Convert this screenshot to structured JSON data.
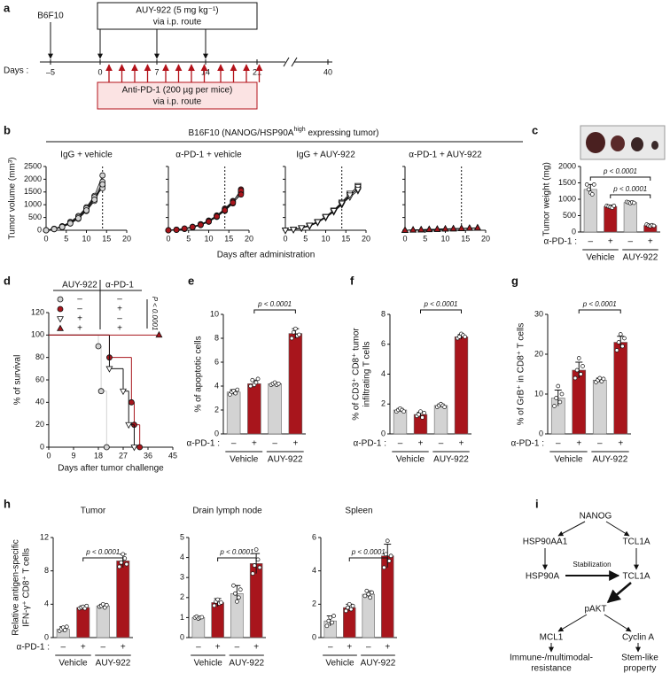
{
  "panel_letters": [
    "a",
    "b",
    "c",
    "d",
    "e",
    "f",
    "g",
    "h",
    "i"
  ],
  "timeline": {
    "start_label": "B6F10",
    "drug_box": [
      "AUY-922 (5 mg kg⁻¹)",
      "via i.p. route"
    ],
    "antibody_box": [
      "Anti-PD-1 (200 µg per mice)",
      "via i.p. route"
    ],
    "days_label": "Days :",
    "days": [
      "–5",
      "0",
      "7",
      "14",
      "21",
      "40"
    ]
  },
  "panel_b": {
    "title_parts": [
      "B16F10 (NANOG/HSP90A",
      "high",
      " expressing tumor)"
    ],
    "x_label": "Days after administration",
    "y_label": "Tumor volume (mm³)"
  },
  "chart_data": [
    {
      "type": "line",
      "title": "IgG + vehicle",
      "marker": "circle",
      "color": "#d3d3d3",
      "vline": 14,
      "x": [
        0,
        2,
        4,
        6,
        8,
        10,
        12,
        14,
        16,
        18
      ],
      "xlim": [
        0,
        20
      ],
      "xticks": [
        0,
        5,
        10,
        15,
        20
      ],
      "ylim": [
        0,
        2500
      ],
      "yticks": [
        0,
        500,
        1000,
        1500,
        2000,
        2500
      ],
      "ytick_labels": true,
      "series": [
        {
          "values": [
            0,
            60,
            160,
            330,
            560,
            900,
            1350,
            2150,
            null,
            null
          ]
        },
        {
          "values": [
            0,
            50,
            140,
            290,
            500,
            820,
            1250,
            1900,
            null,
            null
          ]
        },
        {
          "values": [
            0,
            40,
            120,
            260,
            450,
            750,
            1150,
            1750,
            null,
            null
          ]
        },
        {
          "values": [
            0,
            55,
            150,
            310,
            520,
            860,
            1300,
            1650,
            null,
            null
          ]
        },
        {
          "values": [
            0,
            45,
            130,
            270,
            470,
            780,
            1200,
            1800,
            null,
            null
          ]
        }
      ]
    },
    {
      "type": "line",
      "title": "α-PD-1 + vehicle",
      "marker": "circle",
      "color": "#a8151c",
      "vline": 14,
      "x": [
        0,
        2,
        4,
        6,
        8,
        10,
        12,
        14,
        16,
        18
      ],
      "xlim": [
        0,
        20
      ],
      "xticks": [
        0,
        5,
        10,
        15,
        20
      ],
      "ylim": [
        0,
        2500
      ],
      "yticks": [
        0,
        500,
        1000,
        1500,
        2000,
        2500
      ],
      "ytick_labels": false,
      "series": [
        {
          "values": [
            0,
            20,
            60,
            120,
            220,
            360,
            550,
            800,
            1100,
            1600
          ]
        },
        {
          "values": [
            0,
            25,
            70,
            140,
            240,
            380,
            580,
            850,
            1150,
            1500
          ]
        },
        {
          "values": [
            0,
            15,
            50,
            110,
            200,
            330,
            520,
            760,
            1050,
            1450
          ]
        },
        {
          "values": [
            0,
            20,
            55,
            130,
            230,
            350,
            560,
            820,
            1120,
            1550
          ]
        },
        {
          "values": [
            0,
            18,
            65,
            125,
            210,
            340,
            540,
            780,
            1080,
            1400
          ]
        }
      ]
    },
    {
      "type": "line",
      "title": "IgG + AUY-922",
      "marker": "triangle-down",
      "color": "#ffffff",
      "vline": 14,
      "x": [
        0,
        2,
        4,
        6,
        8,
        10,
        12,
        14,
        16,
        18
      ],
      "xlim": [
        0,
        20
      ],
      "xticks": [
        0,
        5,
        10,
        15,
        20
      ],
      "ylim": [
        0,
        2500
      ],
      "yticks": [
        0,
        500,
        1000,
        1500,
        2000,
        2500
      ],
      "ytick_labels": false,
      "series": [
        {
          "values": [
            0,
            30,
            90,
            180,
            320,
            520,
            760,
            1050,
            1400,
            1750
          ]
        },
        {
          "values": [
            0,
            25,
            80,
            160,
            300,
            490,
            720,
            1000,
            1350,
            1650
          ]
        },
        {
          "values": [
            0,
            35,
            100,
            200,
            340,
            540,
            790,
            1100,
            1450,
            1700
          ]
        },
        {
          "values": [
            0,
            28,
            85,
            170,
            310,
            500,
            740,
            1020,
            1300,
            1550
          ]
        },
        {
          "values": [
            0,
            32,
            95,
            190,
            330,
            530,
            770,
            1060,
            1380,
            1600
          ]
        }
      ]
    },
    {
      "type": "line",
      "title": "α-PD-1 + AUY-922",
      "marker": "triangle-up",
      "color": "#a8151c",
      "vline": 14,
      "x": [
        0,
        2,
        4,
        6,
        8,
        10,
        12,
        14,
        16,
        18
      ],
      "xlim": [
        0,
        20
      ],
      "xticks": [
        0,
        5,
        10,
        15,
        20
      ],
      "ylim": [
        0,
        2500
      ],
      "yticks": [
        0,
        500,
        1000,
        1500,
        2000,
        2500
      ],
      "ytick_labels": false,
      "series": [
        {
          "values": [
            0,
            10,
            20,
            30,
            40,
            50,
            60,
            70,
            80,
            90
          ]
        },
        {
          "values": [
            0,
            8,
            15,
            25,
            35,
            45,
            55,
            65,
            75,
            85
          ]
        },
        {
          "values": [
            0,
            12,
            22,
            32,
            42,
            52,
            62,
            72,
            82,
            100
          ]
        },
        {
          "values": [
            0,
            9,
            18,
            28,
            38,
            48,
            58,
            68,
            78,
            95
          ]
        },
        {
          "values": [
            0,
            11,
            21,
            31,
            41,
            51,
            61,
            71,
            81,
            92
          ]
        }
      ]
    },
    {
      "type": "bar",
      "y_label": "Tumor weight (mg)",
      "category_label": "α-PD-1 :",
      "categories": [
        "–",
        "+",
        "–",
        "+"
      ],
      "groups": [
        "Vehicle",
        "AUY-922"
      ],
      "colors": [
        "#d3d3d3",
        "#a8151c",
        "#d3d3d3",
        "#a8151c"
      ],
      "values": [
        1300,
        780,
        900,
        200
      ],
      "errors": [
        150,
        40,
        40,
        40
      ],
      "points": [
        [
          1450,
          1300,
          1200,
          1150,
          1450
        ],
        [
          800,
          780,
          760,
          740,
          800
        ],
        [
          920,
          900,
          880,
          910,
          890
        ],
        [
          230,
          200,
          180,
          210,
          190
        ]
      ],
      "ylim": [
        0,
        2000
      ],
      "yticks": [
        0,
        500,
        1000,
        1500,
        2000
      ],
      "annotations": [
        "p < 0.0001",
        "p < 0.0001"
      ]
    },
    {
      "type": "step",
      "y_label": "% of survival",
      "x_label": "Days after tumor challenge",
      "xlim": [
        0,
        45
      ],
      "xticks": [
        0,
        9,
        18,
        27,
        36,
        45
      ],
      "ylim": [
        0,
        120
      ],
      "yticks": [
        0,
        20,
        40,
        60,
        80,
        100,
        120
      ],
      "legend_header": [
        "AUY-922",
        "α-PD-1"
      ],
      "annotation": "P < 0.0001",
      "series": [
        {
          "marker": "circle",
          "color": "#d3d3d3",
          "labels": [
            "–",
            "–"
          ],
          "x": [
            0,
            18,
            19,
            21
          ],
          "values": [
            100,
            90,
            50,
            0
          ]
        },
        {
          "marker": "circle",
          "color": "#a8151c",
          "labels": [
            "–",
            "+"
          ],
          "x": [
            0,
            22,
            30,
            31,
            33
          ],
          "values": [
            100,
            80,
            40,
            20,
            0
          ]
        },
        {
          "marker": "triangle-down",
          "color": "#ffffff",
          "labels": [
            "+",
            "–"
          ],
          "x": [
            0,
            22,
            27,
            29,
            31
          ],
          "values": [
            100,
            70,
            50,
            20,
            0
          ]
        },
        {
          "marker": "triangle-up",
          "color": "#a8151c",
          "labels": [
            "+",
            "+"
          ],
          "x": [
            0,
            40
          ],
          "values": [
            100,
            100
          ]
        }
      ]
    },
    {
      "type": "bar",
      "y_label": "% of apoptotic cells",
      "category_label": "α-PD-1 :",
      "categories": [
        "–",
        "+",
        "–",
        "+"
      ],
      "groups": [
        "Vehicle",
        "AUY-922"
      ],
      "colors": [
        "#d3d3d3",
        "#a8151c",
        "#d3d3d3",
        "#a8151c"
      ],
      "values": [
        3.5,
        4.2,
        4.2,
        8.4
      ],
      "errors": [
        0.2,
        0.3,
        0.1,
        0.4
      ],
      "points": [
        [
          3.3,
          3.5,
          3.6,
          3.4,
          3.7
        ],
        [
          4.0,
          4.5,
          4.1,
          4.3,
          4.6
        ],
        [
          4.1,
          4.2,
          4.3,
          4.1,
          4.2
        ],
        [
          8.0,
          8.5,
          8.8,
          8.2,
          8.3
        ]
      ],
      "ylim": [
        0,
        10
      ],
      "yticks": [
        0,
        2,
        4,
        6,
        8,
        10
      ],
      "annotations": [
        "p < 0.0001"
      ]
    },
    {
      "type": "bar",
      "y_label": [
        "% of CD3⁺ CD8⁺ tumor",
        "infiltrating T cells"
      ],
      "category_label": "α-PD-1 :",
      "categories": [
        "–",
        "+",
        "–",
        "+"
      ],
      "groups": [
        "Vehicle",
        "AUY-922"
      ],
      "colors": [
        "#d3d3d3",
        "#a8151c",
        "#d3d3d3",
        "#a8151c"
      ],
      "values": [
        1.6,
        1.3,
        1.9,
        6.5
      ],
      "errors": [
        0.1,
        0.15,
        0.1,
        0.15
      ],
      "points": [
        [
          1.5,
          1.6,
          1.7,
          1.6,
          1.5
        ],
        [
          1.2,
          1.3,
          1.5,
          1.1,
          1.4
        ],
        [
          1.8,
          1.9,
          2.0,
          1.9,
          1.8
        ],
        [
          6.4,
          6.5,
          6.7,
          6.6,
          6.5
        ]
      ],
      "ylim": [
        0,
        8
      ],
      "yticks": [
        0,
        2,
        4,
        6,
        8
      ],
      "annotations": [
        "p < 0.0001"
      ]
    },
    {
      "type": "bar",
      "y_label": "% of GrB⁺ in CD8⁺ T cells",
      "category_label": "α-PD-1 :",
      "categories": [
        "–",
        "+",
        "–",
        "+"
      ],
      "groups": [
        "Vehicle",
        "AUY-922"
      ],
      "colors": [
        "#d3d3d3",
        "#a8151c",
        "#d3d3d3",
        "#a8151c"
      ],
      "values": [
        9,
        16,
        13.5,
        23
      ],
      "errors": [
        2,
        2,
        0.5,
        1.5
      ],
      "points": [
        [
          7,
          9,
          12,
          8,
          10
        ],
        [
          14,
          16,
          19,
          15,
          17
        ],
        [
          13,
          13.5,
          14,
          13.2,
          13.8
        ],
        [
          21,
          23,
          25,
          22,
          24
        ]
      ],
      "ylim": [
        0,
        30
      ],
      "yticks": [
        0,
        10,
        20,
        30
      ],
      "annotations": [
        "p < 0.0001"
      ]
    },
    {
      "type": "bar",
      "title": "Tumor",
      "y_label": [
        "Relative antigen-specific",
        "IFN-γ⁺ CD8⁺ T cells"
      ],
      "category_label": "α-PD-1 :",
      "categories": [
        "–",
        "+",
        "–",
        "+"
      ],
      "groups": [
        "Vehicle",
        "AUY-922"
      ],
      "colors": [
        "#d3d3d3",
        "#a8151c",
        "#d3d3d3",
        "#a8151c"
      ],
      "values": [
        1,
        3.6,
        3.8,
        9.2
      ],
      "errors": [
        0.3,
        0.2,
        0.2,
        0.8
      ],
      "points": [
        [
          0.8,
          1,
          1.2,
          0.9,
          1.3
        ],
        [
          3.5,
          3.6,
          3.7,
          3.5,
          3.8
        ],
        [
          3.7,
          3.8,
          4.0,
          3.6,
          3.9
        ],
        [
          8.5,
          9,
          10,
          9.5,
          8.8
        ]
      ],
      "ylim": [
        0,
        12
      ],
      "yticks": [
        0,
        4,
        8,
        12
      ],
      "annotations": [
        "p < 0.0001"
      ]
    },
    {
      "type": "bar",
      "title": "Drain lymph node",
      "categories": [
        "–",
        "+",
        "–",
        "+"
      ],
      "groups": [
        "Vehicle",
        "AUY-922"
      ],
      "colors": [
        "#d3d3d3",
        "#a8151c",
        "#d3d3d3",
        "#a8151c"
      ],
      "values": [
        1,
        1.75,
        2.2,
        3.7
      ],
      "errors": [
        0.05,
        0.2,
        0.4,
        0.5
      ],
      "points": [
        [
          1,
          1.05,
          0.95,
          1,
          1.02
        ],
        [
          1.6,
          1.8,
          1.9,
          1.7,
          1.75
        ],
        [
          2.6,
          2.2,
          1.8,
          2.0,
          2.4
        ],
        [
          3.2,
          3.6,
          4.4,
          3.9,
          3.5
        ]
      ],
      "ylim": [
        0,
        5
      ],
      "yticks": [
        0,
        1,
        2,
        3,
        4,
        5
      ],
      "annotations": [
        "p < 0.0001"
      ]
    },
    {
      "type": "bar",
      "title": "Spleen",
      "categories": [
        "–",
        "+",
        "–",
        "+"
      ],
      "groups": [
        "Vehicle",
        "AUY-922"
      ],
      "colors": [
        "#d3d3d3",
        "#a8151c",
        "#d3d3d3",
        "#a8151c"
      ],
      "values": [
        1,
        1.8,
        2.6,
        4.9
      ],
      "errors": [
        0.3,
        0.2,
        0.2,
        0.7
      ],
      "points": [
        [
          0.7,
          1,
          1.2,
          0.9,
          1.3
        ],
        [
          1.6,
          1.8,
          2.0,
          1.7,
          1.9
        ],
        [
          2.5,
          2.8,
          2.6,
          2.4,
          2.7
        ],
        [
          4.2,
          5,
          5.8,
          4.6,
          4.9
        ]
      ],
      "ylim": [
        0,
        6
      ],
      "yticks": [
        0,
        2,
        4,
        6
      ],
      "annotations": [
        "p < 0.0001"
      ]
    }
  ],
  "diagram": {
    "nodes": [
      "NANOG",
      "HSP90AA1",
      "TCL1A",
      "HSP90A",
      "TCL1A",
      "pAKT",
      "MCL1",
      "Cyclin A"
    ],
    "edge_label": "Stabilization",
    "outcomes": [
      [
        "Immune-/multimodal-",
        "resistance"
      ],
      [
        "Stem-like",
        "property"
      ]
    ]
  }
}
